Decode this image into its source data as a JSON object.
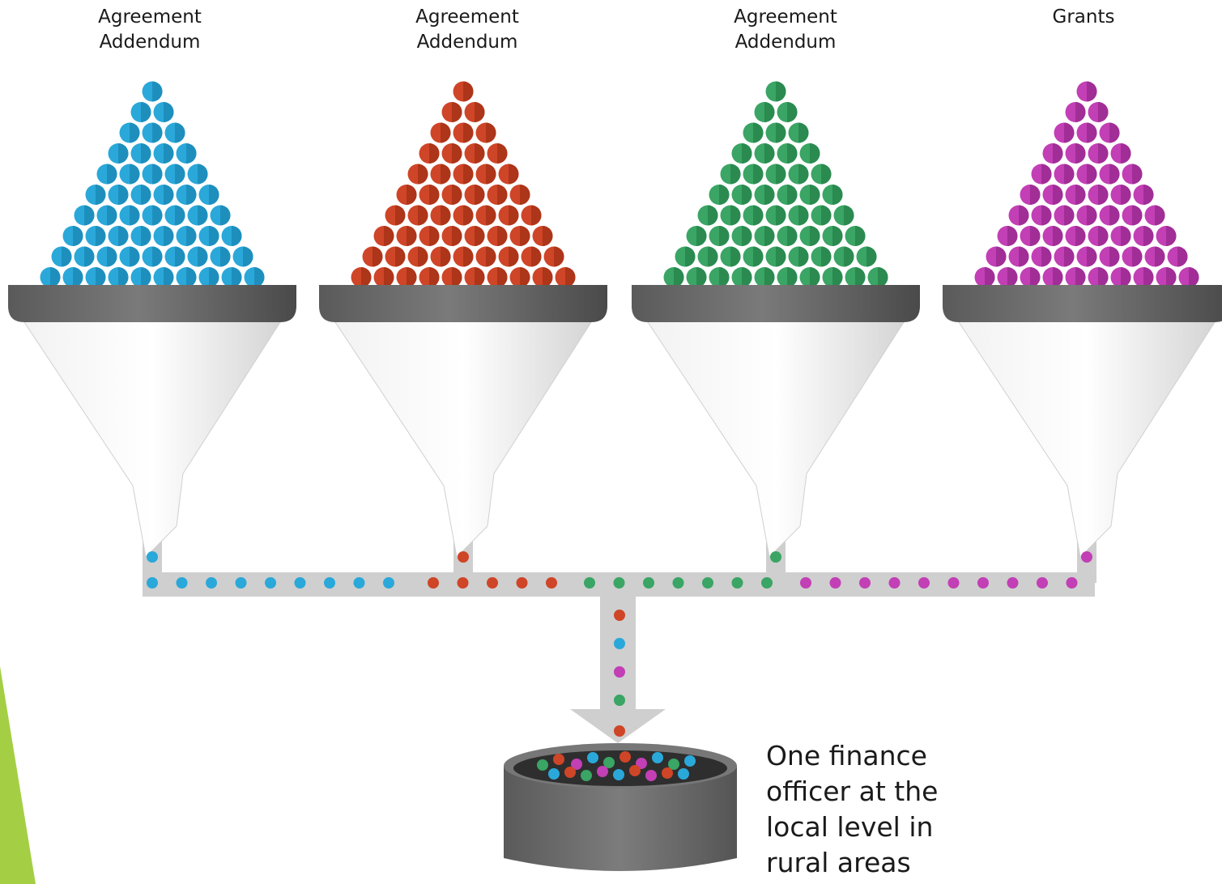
{
  "funnels": [
    {
      "label": "Agreement\nAddendum",
      "color": "#2aa8d9",
      "dark": "#1e8fbd"
    },
    {
      "label": "Agreement\nAddendum",
      "color": "#cf4527",
      "dark": "#ad3519"
    },
    {
      "label": "Agreement\nAddendum",
      "color": "#3aa564",
      "dark": "#2b8a50"
    },
    {
      "label": "Grants",
      "color": "#c23fb5",
      "dark": "#a02e96"
    }
  ],
  "outcome": {
    "label": "One finance officer at the local level in rural areas"
  },
  "colors": {
    "funnel_rim": "#6b6b6b",
    "funnel_body": "#e6e6e6",
    "pipe": "#cfcfcf",
    "bin": "#6a6a6a",
    "accent": "#a4cf45"
  }
}
